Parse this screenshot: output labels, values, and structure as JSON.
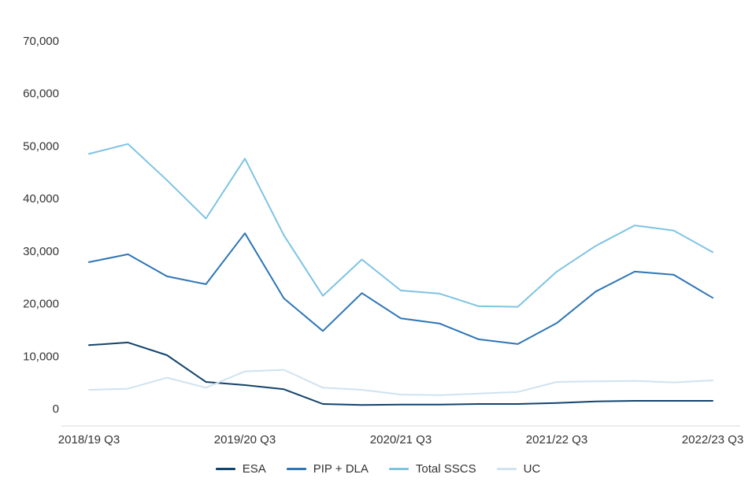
{
  "chart_data": {
    "type": "line",
    "grid": false,
    "legend_position": "bottom",
    "ylim": [
      0,
      70000
    ],
    "y_ticks": [
      0,
      10000,
      20000,
      30000,
      40000,
      50000,
      60000,
      70000
    ],
    "x_tick_labels": [
      "2018/19 Q3",
      "2019/20 Q3",
      "2020/21 Q3",
      "2021/22 Q3",
      "2022/23 Q3"
    ],
    "x_tick_indices": [
      0,
      4,
      8,
      12,
      16
    ],
    "num_points": 17,
    "series": [
      {
        "name": "ESA",
        "color": "#12436d",
        "values": [
          12100,
          12600,
          10200,
          5100,
          4500,
          3700,
          900,
          700,
          800,
          800,
          900,
          900,
          1100,
          1400,
          1500,
          1500,
          1500
        ]
      },
      {
        "name": "PIP + DLA",
        "color": "#2e75b6",
        "values": [
          27900,
          29400,
          25200,
          23700,
          33400,
          21000,
          14800,
          22000,
          17200,
          16200,
          13200,
          12300,
          16300,
          22300,
          26100,
          25500,
          21100
        ]
      },
      {
        "name": "Total SSCS",
        "color": "#7fc3e3",
        "values": [
          48500,
          50400,
          43500,
          36200,
          47600,
          33000,
          21500,
          28400,
          22500,
          21900,
          19500,
          19400,
          26100,
          31000,
          34900,
          33900,
          29800
        ]
      },
      {
        "name": "UC",
        "color": "#cfe3f0",
        "values": [
          3600,
          3800,
          5900,
          4000,
          7100,
          7400,
          4000,
          3600,
          2700,
          2600,
          2900,
          3200,
          5100,
          5200,
          5300,
          5000,
          5400
        ]
      }
    ],
    "colors": {
      "axis_line": "#d9d9d9",
      "text": "#333333",
      "background": "#ffffff"
    }
  }
}
